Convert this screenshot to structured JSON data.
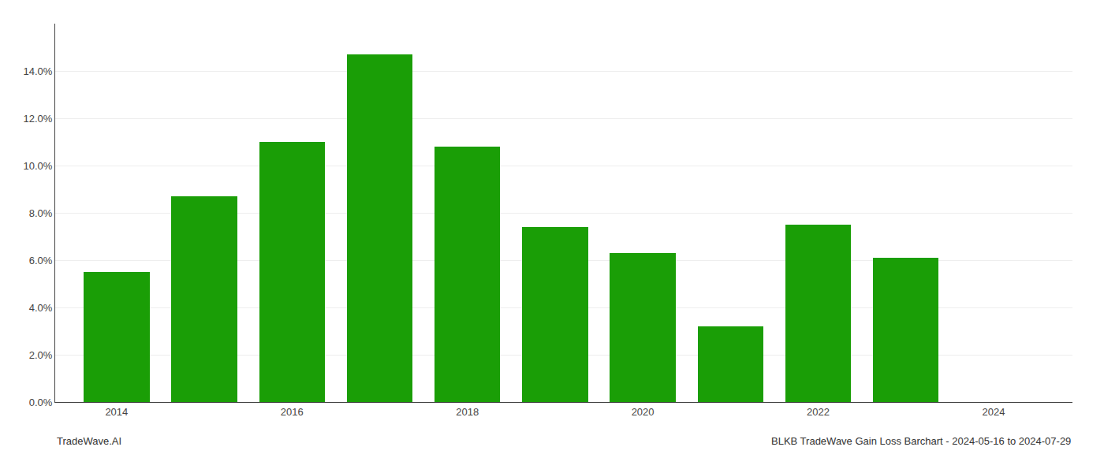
{
  "chart_data": {
    "type": "bar",
    "x": [
      2014,
      2015,
      2016,
      2017,
      2018,
      2019,
      2020,
      2021,
      2022,
      2023
    ],
    "values": [
      0.055,
      0.087,
      0.11,
      0.147,
      0.108,
      0.074,
      0.063,
      0.032,
      0.075,
      0.061
    ],
    "color": "#1a9e06",
    "xlim": [
      2013.3,
      2024.9
    ],
    "xticks": [
      2014,
      2016,
      2018,
      2020,
      2022,
      2024
    ],
    "ylim": [
      0,
      0.16
    ],
    "yticks": [
      {
        "value": 0.0,
        "label": "0.0%"
      },
      {
        "value": 0.02,
        "label": "2.0%"
      },
      {
        "value": 0.04,
        "label": "4.0%"
      },
      {
        "value": 0.06,
        "label": "6.0%"
      },
      {
        "value": 0.08,
        "label": "8.0%"
      },
      {
        "value": 0.1,
        "label": "10.0%"
      },
      {
        "value": 0.12,
        "label": "12.0%"
      },
      {
        "value": 0.14,
        "label": "14.0%"
      }
    ],
    "grid": true,
    "annotations": [
      "TradeWave.AI",
      "BLKB TradeWave Gain Loss Barchart - 2024-05-16 to 2024-07-29"
    ]
  }
}
